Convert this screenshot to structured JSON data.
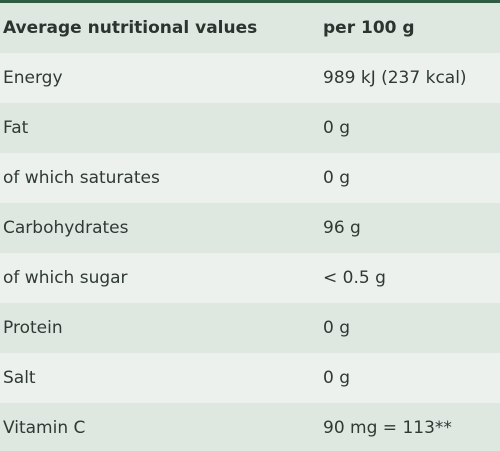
{
  "table": {
    "header": {
      "label": "Average nutritional values",
      "value": "per 100 g"
    },
    "rows": [
      {
        "label": "Energy",
        "value": "989 kJ (237 kcal)"
      },
      {
        "label": "Fat",
        "value": "0 g"
      },
      {
        "label": "of which saturates",
        "value": "0 g"
      },
      {
        "label": "Carbohydrates",
        "value": "96 g"
      },
      {
        "label": "of which sugar",
        "value": "< 0.5 g"
      },
      {
        "label": "Protein",
        "value": "0 g"
      },
      {
        "label": "Salt",
        "value": "0 g"
      },
      {
        "label": "Vitamin C",
        "value": "90 mg = 113**"
      }
    ]
  },
  "colors": {
    "top_border": "#2f5a43",
    "row_dark": "#dfe7e1",
    "row_light": "#ecf1ed",
    "text": "#2f3a34"
  }
}
